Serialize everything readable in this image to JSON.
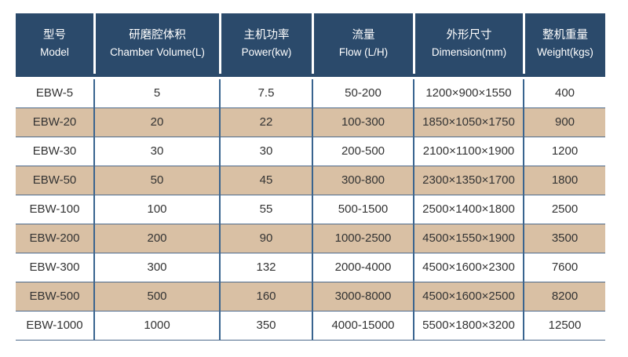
{
  "chart_data": {
    "type": "table",
    "title": "",
    "columns": [
      {
        "zh": "型号",
        "en": "Model"
      },
      {
        "zh": "研磨腔体积",
        "en": "Chamber Volume(L)"
      },
      {
        "zh": "主机功率",
        "en": "Power(kw)"
      },
      {
        "zh": "流量",
        "en": "Flow  (L/H)"
      },
      {
        "zh": "外形尺寸",
        "en": "Dimension(mm)"
      },
      {
        "zh": "整机重量",
        "en": "Weight(kgs)"
      }
    ],
    "rows": [
      [
        "EBW-5",
        "5",
        "7.5",
        "50-200",
        "1200×900×1550",
        "400"
      ],
      [
        "EBW-20",
        "20",
        "22",
        "100-300",
        "1850×1050×1750",
        "900"
      ],
      [
        "EBW-30",
        "30",
        "30",
        "200-500",
        "2100×1100×1900",
        "1200"
      ],
      [
        "EBW-50",
        "50",
        "45",
        "300-800",
        "2300×1350×1700",
        "1800"
      ],
      [
        "EBW-100",
        "100",
        "55",
        "500-1500",
        "2500×1400×1800",
        "2500"
      ],
      [
        "EBW-200",
        "200",
        "90",
        "1000-2500",
        "4500×1550×1900",
        "3500"
      ],
      [
        "EBW-300",
        "300",
        "132",
        "2000-4000",
        "4500×1600×2300",
        "7600"
      ],
      [
        "EBW-500",
        "500",
        "160",
        "3000-8000",
        "4500×1600×2500",
        "8200"
      ],
      [
        "EBW-1000",
        "1000",
        "350",
        "4000-15000",
        "5500×1800×3200",
        "12500"
      ]
    ],
    "layout": {
      "alternate_row_indices": [
        1,
        3,
        5,
        7
      ],
      "grid": "on",
      "legend": "none"
    }
  },
  "colors": {
    "header_bg": "#2b4a6b",
    "header_text": "#ffffff",
    "row_bg": "#ffffff",
    "row_alt_bg": "#d9c0a4",
    "grid_vertical": "#39648f",
    "grid_horizontal": "#4d6a8c",
    "body_text": "#333333"
  }
}
